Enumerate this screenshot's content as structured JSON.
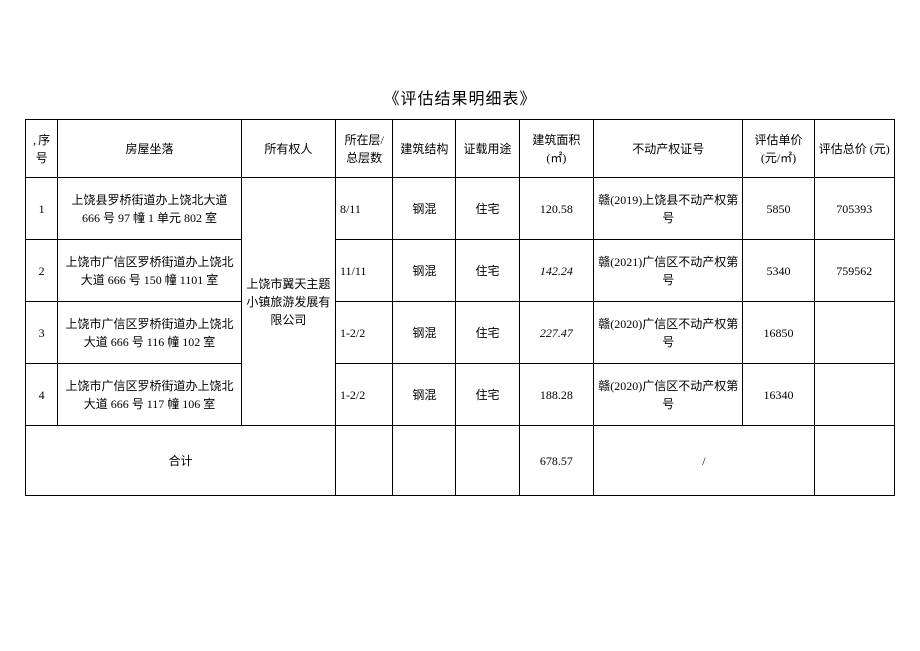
{
  "title": "《评估结果明细表》",
  "columns": {
    "seq": "序号",
    "location": "房屋坐落",
    "owner": "所有权人",
    "floor": "所在层/总层数",
    "structure": "建筑结构",
    "use": "证载用途",
    "area": "建筑面积 (㎡)",
    "cert": "不动产权证号",
    "unitPrice": "评估单价 (元/㎡)",
    "totalPrice": "评估总价 (元)"
  },
  "owner": "上饶市翼天主题小镇旅游发展有限公司",
  "rows": [
    {
      "seq": "1",
      "location": "上饶县罗桥街道办上饶北大道 666 号 97 幢 1 单元 802 室",
      "floor": "8/11",
      "structure": "钢混",
      "use": "住宅",
      "area": "120.58",
      "cert": "赣(2019)上饶县不动产权第号",
      "unitPrice": "5850",
      "totalPrice": "705393",
      "areaItalic": false
    },
    {
      "seq": "2",
      "location": "上饶市广信区罗桥街道办上饶北大道 666 号 150 幢 1101 室",
      "floor": "11/11",
      "structure": "钢混",
      "use": "住宅",
      "area": "142.24",
      "cert": "赣(2021)广信区不动产权第号",
      "unitPrice": "5340",
      "totalPrice": "759562",
      "areaItalic": true
    },
    {
      "seq": "3",
      "location": "上饶市广信区罗桥街道办上饶北大道 666 号 116 幢 102 室",
      "floor": "1-2/2",
      "structure": "钢混",
      "use": "住宅",
      "area": "227.47",
      "cert": "赣(2020)广信区不动产权第号",
      "unitPrice": "16850",
      "totalPrice": "",
      "areaItalic": true
    },
    {
      "seq": "4",
      "location": "上饶市广信区罗桥街道办上饶北大道 666 号 117 幢 106 室",
      "floor": "1-2/2",
      "structure": "钢混",
      "use": "住宅",
      "area": "188.28",
      "cert": "赣(2020)广信区不动产权第号",
      "unitPrice": "16340",
      "totalPrice": "",
      "areaItalic": false
    }
  ],
  "total": {
    "label": "合计",
    "area": "678.57",
    "cert": "/"
  },
  "styling": {
    "background_color": "#ffffff",
    "border_color": "#000000",
    "text_color": "#000000",
    "title_fontsize": 16,
    "cell_fontsize": 12,
    "font_family": "SimSun"
  }
}
